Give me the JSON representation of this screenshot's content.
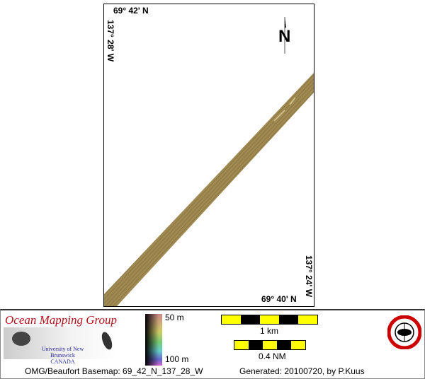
{
  "map": {
    "top_left_lat": "69° 42' N",
    "left_lon": "137° 28' W",
    "bottom_right_lat": "69° 40' N",
    "right_lon": "137° 24' W",
    "north_arrow_label": "N",
    "swath_color": "#a08a52"
  },
  "legend": {
    "org_name": "Ocean Mapping Group",
    "university": "University of New Brunswick",
    "country": "CANADA",
    "depth_min": "50 m",
    "depth_max": "100 m",
    "scale_km": "1 km",
    "scale_nm": "0.4 NM",
    "seal_text": "GEODESY AND GEOMATICS ENGINEERING UNB"
  },
  "footer": {
    "basemap": "OMG/Beaufort Basemap: 69_42_N_137_28_W",
    "generated": "Generated: 20100720, by P.Kuus"
  },
  "colors": {
    "scale_yellow": "#ffff00",
    "org_red": "#b0101a",
    "uni_blue": "#2a2a9a"
  }
}
